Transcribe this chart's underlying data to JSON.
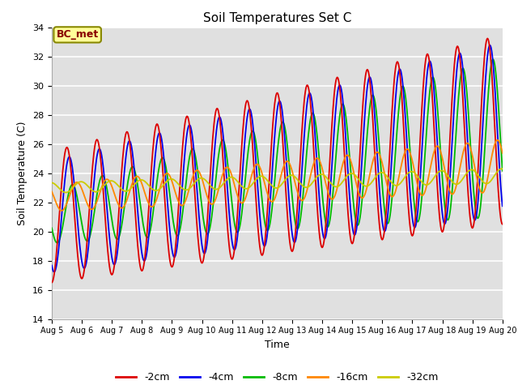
{
  "title": "Soil Temperatures Set C",
  "xlabel": "Time",
  "ylabel": "Soil Temperature (C)",
  "ylim": [
    14,
    34
  ],
  "xlim_days": [
    0,
    15
  ],
  "x_tick_labels": [
    "Aug 5",
    "Aug 6",
    "Aug 7",
    "Aug 8",
    "Aug 9",
    "Aug 10",
    "Aug 11",
    "Aug 12",
    "Aug 13",
    "Aug 14",
    "Aug 15",
    "Aug 16",
    "Aug 17",
    "Aug 18",
    "Aug 19",
    "Aug 20"
  ],
  "series_labels": [
    "-2cm",
    "-4cm",
    "-8cm",
    "-16cm",
    "-32cm"
  ],
  "series_colors": [
    "#dd0000",
    "#0000ee",
    "#00bb00",
    "#ff8800",
    "#cccc00"
  ],
  "bc_met_label": "BC_met",
  "bc_met_facecolor": "#ffff99",
  "bc_met_edgecolor": "#888800",
  "bc_met_textcolor": "#880000",
  "background_color": "#e0e0e0",
  "figure_facecolor": "#ffffff",
  "grid_color": "#ffffff"
}
